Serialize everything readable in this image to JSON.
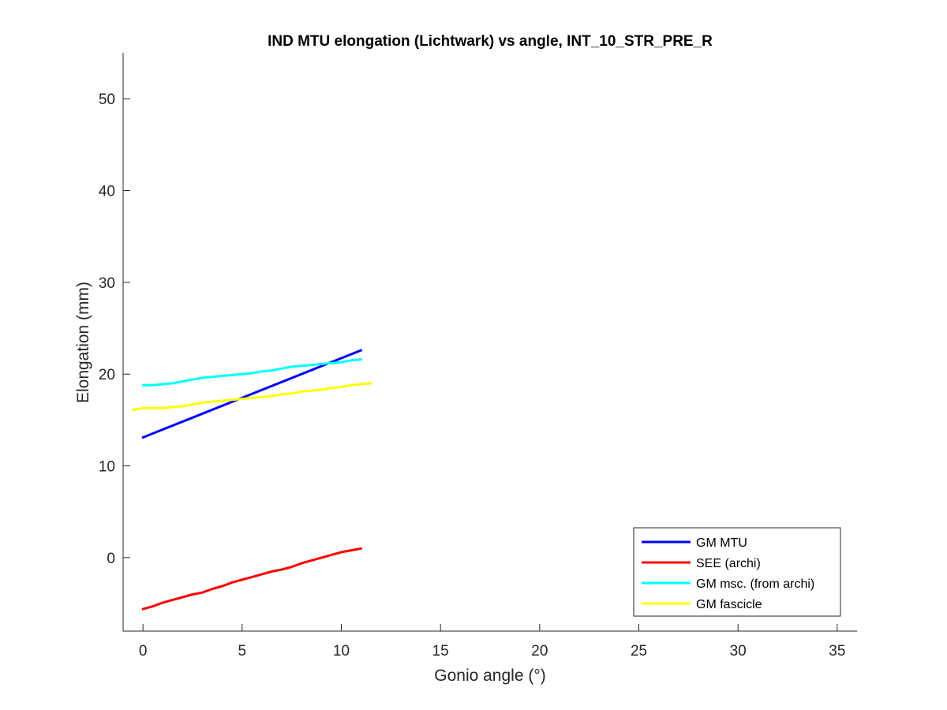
{
  "chart_data": {
    "type": "line",
    "title": "IND MTU elongation (Lichtwark) vs angle, INT_10_STR_PRE_R",
    "xlabel": "Gonio angle (°)",
    "ylabel": "Elongation (mm)",
    "xlim": [
      -1,
      36
    ],
    "ylim": [
      -8,
      55
    ],
    "xticks": [
      0,
      5,
      10,
      15,
      20,
      25,
      30,
      35
    ],
    "yticks": [
      0,
      10,
      20,
      30,
      40,
      50
    ],
    "grid": false,
    "legend_position": "bottom-right",
    "series": [
      {
        "name": "GM MTU",
        "color": "#0000ff",
        "x": [
          0,
          11
        ],
        "y": [
          13.1,
          22.6
        ]
      },
      {
        "name": "SEE (archi)",
        "color": "#ff0000",
        "x": [
          0,
          0.5,
          1,
          1.5,
          2,
          2.5,
          3,
          3.5,
          4,
          4.5,
          5,
          5.5,
          6,
          6.5,
          7,
          7.5,
          8,
          8.5,
          9,
          9.5,
          10,
          10.5,
          11
        ],
        "y": [
          -5.6,
          -5.3,
          -4.9,
          -4.6,
          -4.3,
          -4.0,
          -3.8,
          -3.4,
          -3.1,
          -2.7,
          -2.4,
          -2.1,
          -1.8,
          -1.5,
          -1.3,
          -1.0,
          -0.6,
          -0.3,
          0.0,
          0.3,
          0.6,
          0.8,
          1.0
        ]
      },
      {
        "name": "GM msc. (from archi)",
        "color": "#00ffff",
        "x": [
          0,
          0.5,
          1,
          1.5,
          2,
          2.5,
          3,
          3.5,
          4,
          4.5,
          5,
          5.5,
          6,
          6.5,
          7,
          7.5,
          8,
          8.5,
          9,
          9.5,
          10,
          10.5,
          11
        ],
        "y": [
          18.8,
          18.8,
          18.9,
          19.0,
          19.2,
          19.4,
          19.6,
          19.7,
          19.8,
          19.9,
          20.0,
          20.1,
          20.3,
          20.4,
          20.6,
          20.8,
          20.9,
          21.0,
          21.1,
          21.2,
          21.3,
          21.5,
          21.6
        ]
      },
      {
        "name": "GM fascicle",
        "color": "#ffff00",
        "x": [
          -0.5,
          0,
          0.5,
          1,
          1.5,
          2,
          2.5,
          3,
          3.5,
          4,
          4.5,
          5,
          5.5,
          6,
          6.5,
          7,
          7.5,
          8,
          8.5,
          9,
          9.5,
          10,
          10.5,
          11,
          11.5
        ],
        "y": [
          16.1,
          16.3,
          16.3,
          16.3,
          16.4,
          16.5,
          16.7,
          16.9,
          17.0,
          17.1,
          17.2,
          17.3,
          17.4,
          17.5,
          17.6,
          17.8,
          17.9,
          18.1,
          18.2,
          18.3,
          18.5,
          18.6,
          18.8,
          18.9,
          19.0
        ]
      }
    ]
  }
}
